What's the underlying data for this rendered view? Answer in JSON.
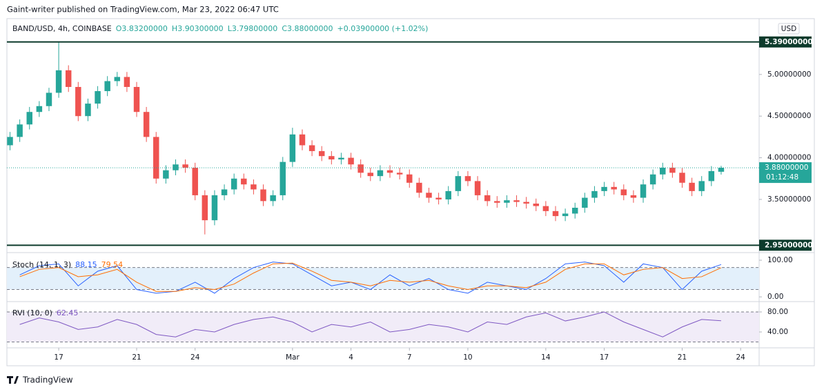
{
  "header": {
    "attribution": "Gaint-writer published on TradingView.com, Mar 23, 2022 06:47 UTC"
  },
  "footer": {
    "brand": "TradingView"
  },
  "chart_data": [
    {
      "type": "candlestick",
      "legend": {
        "symbol": "BAND/USD, 4h, COINBASE",
        "open": "O3.83200000",
        "high": "H3.90300000",
        "low": "L3.79800000",
        "close": "C3.88000000",
        "change": "+0.03900000 (+1.02%)"
      },
      "currency": "USD",
      "up_color": "#26a69a",
      "down_color": "#ef5350",
      "x": [
        14.5,
        15,
        15.5,
        16,
        16.5,
        17,
        17.5,
        18,
        18.5,
        19,
        19.5,
        20,
        20.5,
        21,
        21.5,
        22,
        22.5,
        23,
        23.5,
        24,
        24.5,
        25,
        25.5,
        26,
        26.5,
        27,
        27.5,
        28,
        28.5,
        29,
        29.5,
        30,
        30.5,
        31,
        31.5,
        32,
        32.5,
        33,
        33.5,
        34,
        34.5,
        35,
        35.5,
        36,
        36.5,
        37,
        37.5,
        38,
        38.5,
        39,
        39.5,
        40,
        40.5,
        41,
        41.5,
        42,
        42.5,
        43,
        43.5,
        44,
        44.5,
        45,
        45.5,
        46,
        46.5,
        47,
        47.5,
        48,
        48.5,
        49,
        49.5,
        50,
        50.5,
        51
      ],
      "open": [
        4.15,
        4.25,
        4.4,
        4.55,
        4.62,
        4.78,
        5.05,
        4.85,
        4.5,
        4.65,
        4.8,
        4.92,
        4.97,
        4.85,
        4.55,
        4.25,
        3.75,
        3.85,
        3.92,
        3.88,
        3.55,
        3.25,
        3.55,
        3.62,
        3.75,
        3.68,
        3.62,
        3.48,
        3.55,
        3.95,
        4.28,
        4.15,
        4.08,
        4.02,
        3.98,
        4.0,
        3.92,
        3.82,
        3.78,
        3.85,
        3.82,
        3.8,
        3.7,
        3.58,
        3.52,
        3.5,
        3.6,
        3.78,
        3.72,
        3.55,
        3.48,
        3.46,
        3.49,
        3.47,
        3.45,
        3.42,
        3.36,
        3.3,
        3.33,
        3.4,
        3.52,
        3.6,
        3.65,
        3.62,
        3.55,
        3.52,
        3.68,
        3.8,
        3.88,
        3.82,
        3.7,
        3.6,
        3.72,
        3.832
      ],
      "high": [
        4.31,
        4.46,
        4.61,
        4.68,
        4.84,
        5.39,
        5.11,
        4.91,
        4.71,
        4.86,
        4.98,
        5.03,
        5.03,
        4.91,
        4.61,
        4.31,
        3.91,
        3.98,
        3.98,
        3.94,
        3.61,
        3.61,
        3.68,
        3.81,
        3.81,
        3.74,
        3.68,
        3.61,
        4.01,
        4.36,
        4.34,
        4.21,
        4.14,
        4.08,
        4.06,
        4.06,
        3.98,
        3.88,
        3.91,
        3.91,
        3.88,
        3.86,
        3.76,
        3.64,
        3.58,
        3.66,
        3.84,
        3.84,
        3.78,
        3.61,
        3.54,
        3.55,
        3.55,
        3.53,
        3.51,
        3.48,
        3.42,
        3.39,
        3.46,
        3.58,
        3.66,
        3.71,
        3.71,
        3.68,
        3.61,
        3.74,
        3.86,
        3.94,
        3.94,
        3.88,
        3.76,
        3.78,
        3.9,
        3.903
      ],
      "low": [
        4.09,
        4.19,
        4.34,
        4.49,
        4.56,
        4.72,
        4.79,
        4.44,
        4.44,
        4.59,
        4.74,
        4.86,
        4.79,
        4.49,
        4.19,
        3.69,
        3.69,
        3.79,
        3.82,
        3.49,
        3.08,
        3.19,
        3.49,
        3.56,
        3.62,
        3.56,
        3.42,
        3.42,
        3.49,
        3.89,
        4.09,
        4.02,
        3.96,
        3.92,
        3.92,
        3.86,
        3.76,
        3.72,
        3.72,
        3.76,
        3.74,
        3.64,
        3.52,
        3.46,
        3.44,
        3.44,
        3.54,
        3.66,
        3.49,
        3.42,
        3.4,
        3.4,
        3.41,
        3.39,
        3.36,
        3.3,
        3.24,
        3.24,
        3.27,
        3.34,
        3.46,
        3.54,
        3.56,
        3.49,
        3.46,
        3.46,
        3.62,
        3.74,
        3.76,
        3.64,
        3.54,
        3.54,
        3.66,
        3.798
      ],
      "close": [
        4.25,
        4.4,
        4.55,
        4.62,
        4.78,
        5.05,
        4.85,
        4.5,
        4.65,
        4.8,
        4.92,
        4.97,
        4.85,
        4.55,
        4.25,
        3.75,
        3.85,
        3.92,
        3.88,
        3.55,
        3.25,
        3.55,
        3.62,
        3.75,
        3.68,
        3.62,
        3.48,
        3.55,
        3.95,
        4.28,
        4.15,
        4.08,
        4.02,
        3.98,
        4.0,
        3.92,
        3.82,
        3.78,
        3.85,
        3.82,
        3.8,
        3.7,
        3.58,
        3.52,
        3.5,
        3.6,
        3.78,
        3.72,
        3.55,
        3.48,
        3.46,
        3.49,
        3.47,
        3.45,
        3.42,
        3.36,
        3.3,
        3.33,
        3.4,
        3.52,
        3.6,
        3.65,
        3.62,
        3.55,
        3.52,
        3.68,
        3.8,
        3.88,
        3.82,
        3.7,
        3.6,
        3.72,
        3.84,
        3.88
      ],
      "xlim": [
        14.34,
        52.95
      ],
      "xticks": [
        {
          "value": 17,
          "label": "17"
        },
        {
          "value": 21,
          "label": "21"
        },
        {
          "value": 24,
          "label": "24"
        },
        {
          "value": 29,
          "label": "Mar"
        },
        {
          "value": 32,
          "label": "4"
        },
        {
          "value": 35,
          "label": "7"
        },
        {
          "value": 38,
          "label": "10"
        },
        {
          "value": 42,
          "label": "14"
        },
        {
          "value": 45,
          "label": "17"
        },
        {
          "value": 49,
          "label": "21"
        },
        {
          "value": 52,
          "label": "24"
        }
      ],
      "ylim": [
        2.87,
        5.67
      ],
      "yticks": [
        {
          "value": 3.5,
          "label": "3.50000000"
        },
        {
          "value": 4,
          "label": "4.00000000"
        },
        {
          "value": 4.5,
          "label": "4.50000000"
        },
        {
          "value": 5,
          "label": "5.00000000"
        }
      ],
      "levels": [
        {
          "value": 5.39,
          "label": "5.39000000",
          "color": "#0d3b2c"
        },
        {
          "value": 2.95,
          "label": "2.95000000",
          "color": "#0d3b2c"
        }
      ],
      "current_price": {
        "value": 3.88,
        "label": "3.88000000",
        "countdown": "01:12:48",
        "color": "#26a69a"
      }
    },
    {
      "type": "line",
      "name": "Stoch (14, 1, 3)",
      "x": [
        15,
        16,
        17,
        18,
        19,
        20,
        21,
        22,
        23,
        24,
        25,
        26,
        27,
        28,
        29,
        30,
        31,
        32,
        33,
        34,
        35,
        36,
        37,
        38,
        39,
        40,
        41,
        42,
        43,
        44,
        45,
        46,
        47,
        48,
        49,
        50,
        51
      ],
      "series": [
        {
          "color": "#2962ff",
          "values": [
            60,
            85,
            90,
            30,
            70,
            85,
            20,
            10,
            15,
            40,
            10,
            50,
            80,
            95,
            90,
            60,
            30,
            40,
            20,
            60,
            30,
            50,
            20,
            10,
            40,
            30,
            20,
            50,
            90,
            95,
            85,
            40,
            90,
            80,
            20,
            70,
            88.15
          ]
        },
        {
          "color": "#ff6d00",
          "values": [
            55,
            75,
            80,
            55,
            60,
            75,
            40,
            15,
            15,
            25,
            20,
            35,
            65,
            90,
            92,
            70,
            45,
            40,
            30,
            45,
            40,
            45,
            30,
            20,
            30,
            30,
            25,
            40,
            75,
            90,
            90,
            60,
            75,
            80,
            50,
            55,
            79.54
          ]
        }
      ],
      "band": [
        20,
        80
      ],
      "band_color": "#e3f0fb",
      "ylim": [
        -11,
        117
      ],
      "yticks": [
        {
          "value": 0,
          "label": "0.00"
        },
        {
          "value": 100,
          "label": "100.00"
        }
      ]
    },
    {
      "type": "line",
      "name": "RVI (10, 0)",
      "x": [
        15,
        16,
        17,
        18,
        19,
        20,
        21,
        22,
        23,
        24,
        25,
        26,
        27,
        28,
        29,
        30,
        31,
        32,
        33,
        34,
        35,
        36,
        37,
        38,
        39,
        40,
        41,
        42,
        43,
        44,
        45,
        46,
        47,
        48,
        49,
        50,
        51
      ],
      "series": [
        {
          "color": "#7e57c2",
          "values": [
            55,
            68,
            60,
            45,
            50,
            65,
            55,
            35,
            30,
            45,
            40,
            55,
            65,
            70,
            60,
            40,
            55,
            50,
            60,
            40,
            45,
            55,
            50,
            40,
            60,
            55,
            70,
            78,
            62,
            70,
            80,
            60,
            45,
            30,
            50,
            65,
            62.45
          ]
        }
      ],
      "band": [
        20,
        80
      ],
      "band_color": "#f1ecf8",
      "ylim": [
        13.8,
        99.3
      ],
      "yticks": [
        {
          "value": 40,
          "label": "40.00"
        },
        {
          "value": 80,
          "label": "80.00"
        }
      ]
    }
  ]
}
